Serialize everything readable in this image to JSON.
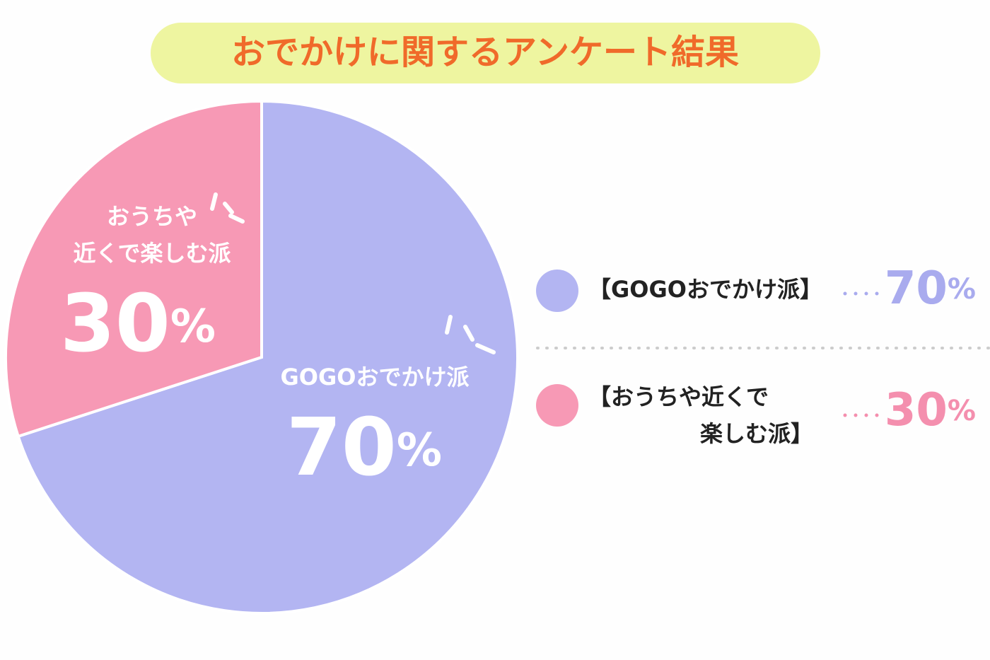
{
  "chart_data": {
    "type": "pie",
    "title": "おでかけに関するアンケート結果",
    "categories": [
      "GOGOおでかけ派",
      "おうちや\n近くで楽しむ派"
    ],
    "legend_labels": [
      "【GOGOおでかけ派】",
      "【おうちや近くで\n楽しむ派】"
    ],
    "values": [
      70,
      30
    ],
    "value_labels": [
      "70%",
      "30%"
    ],
    "colors": [
      "#b3b5f2",
      "#f799b5"
    ]
  }
}
